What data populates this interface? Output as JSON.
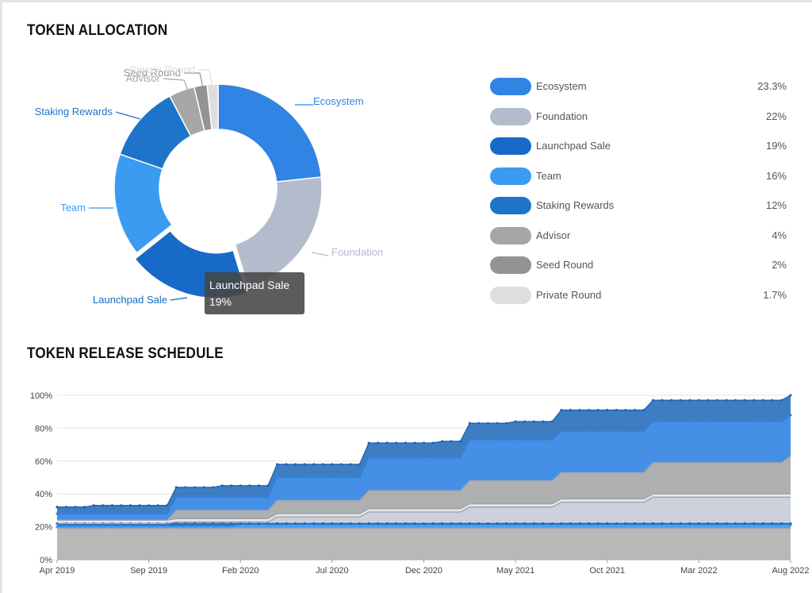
{
  "sections": {
    "allocation_title": "TOKEN ALLOCATION",
    "release_title": "TOKEN RELEASE SCHEDULE"
  },
  "tooltip": {
    "label": "Launchpad Sale",
    "value": "19%"
  },
  "colors": {
    "ecosystem": "#3183e4",
    "foundation": "#b3bccc",
    "launchpad": "#176ac7",
    "team": "#3b9bf1",
    "staking": "#1d74c8",
    "advisor": "#a6a6a6",
    "seed": "#939393",
    "private": "#dedede"
  },
  "chart_data": [
    {
      "type": "pie",
      "title": "TOKEN ALLOCATION",
      "donut": true,
      "legend_position": "right",
      "slices": [
        {
          "label": "Ecosystem",
          "value": 23.3,
          "display": "23.3%",
          "color": "#3183e4"
        },
        {
          "label": "Foundation",
          "value": 22,
          "display": "22%",
          "color": "#b3bccc"
        },
        {
          "label": "Launchpad Sale",
          "value": 19,
          "display": "19%",
          "color": "#176ac7"
        },
        {
          "label": "Team",
          "value": 16,
          "display": "16%",
          "color": "#3b9bf1"
        },
        {
          "label": "Staking Rewards",
          "value": 12,
          "display": "12%",
          "color": "#1d74c8"
        },
        {
          "label": "Advisor",
          "value": 4,
          "display": "4%",
          "color": "#a6a6a6"
        },
        {
          "label": "Seed Round",
          "value": 2,
          "display": "2%",
          "color": "#939393"
        },
        {
          "label": "Private Round",
          "value": 1.7,
          "display": "1.7%",
          "color": "#dedede"
        }
      ]
    },
    {
      "type": "area",
      "title": "TOKEN RELEASE SCHEDULE",
      "stacked": true,
      "x_ticks": [
        "Apr 2019",
        "Sep 2019",
        "Feb 2020",
        "Jul 2020",
        "Dec 2020",
        "May 2021",
        "Oct 2021",
        "Mar 2022",
        "Aug 2022"
      ],
      "y_ticks": [
        "0%",
        "20%",
        "40%",
        "60%",
        "80%",
        "100%"
      ],
      "ylim": [
        0,
        100
      ],
      "grid": true,
      "cumulative_boundaries": [
        {
          "values": [
            19,
            19,
            19,
            19,
            19,
            19,
            19,
            19,
            19,
            19,
            19,
            19,
            19,
            19,
            19,
            19,
            19,
            19,
            19,
            19,
            19,
            19,
            19,
            19,
            19,
            19,
            19,
            19,
            19,
            19,
            19,
            19,
            19,
            19,
            19,
            19,
            19,
            19,
            19,
            19,
            19,
            19,
            19,
            19,
            19,
            19,
            19,
            19,
            19,
            19,
            19,
            19,
            19,
            19,
            19,
            19,
            19,
            19,
            19,
            19,
            19,
            19,
            19,
            19,
            19,
            19,
            19,
            19,
            19,
            19,
            19,
            19,
            19,
            19,
            19,
            19,
            19,
            19,
            19,
            19,
            19
          ],
          "color": "#b0b0b0"
        },
        {
          "values": [
            20,
            20,
            20,
            20,
            20,
            20,
            20,
            20,
            20,
            20,
            20,
            20,
            20,
            20,
            20,
            20,
            20,
            20,
            20,
            20,
            21,
            21,
            21,
            21,
            21,
            21,
            21,
            21,
            21,
            21,
            21,
            21,
            21,
            21,
            21,
            21,
            21,
            21,
            21,
            21,
            21,
            21,
            21,
            21,
            21,
            21,
            21,
            21,
            21,
            21,
            21,
            21,
            21,
            21,
            21,
            21,
            21,
            21,
            21,
            21,
            21,
            21,
            21,
            21,
            21,
            21,
            21,
            21,
            21,
            21,
            21,
            21,
            21,
            21,
            21,
            21,
            21,
            21,
            21,
            21,
            21
          ],
          "color": "#3b9bf1"
        },
        {
          "values": [
            22,
            22,
            22,
            22,
            22,
            22,
            22,
            22,
            22,
            22,
            22,
            22,
            22,
            22,
            22,
            22,
            22,
            22,
            22,
            22,
            22,
            22,
            22,
            22,
            22,
            22,
            22,
            22,
            22,
            22,
            22,
            22,
            22,
            22,
            22,
            22,
            22,
            22,
            22,
            22,
            22,
            22,
            22,
            22,
            22,
            22,
            22,
            22,
            22,
            22,
            22,
            22,
            22,
            22,
            22,
            22,
            22,
            22,
            22,
            22,
            22,
            22,
            22,
            22,
            22,
            22,
            22,
            22,
            22,
            22,
            22,
            22,
            22,
            22,
            22,
            22,
            22,
            22,
            22,
            22,
            22
          ],
          "color": "#176ac7"
        },
        {
          "values": [
            22,
            22,
            22,
            22,
            22,
            22,
            22,
            22,
            22,
            22,
            22,
            22,
            22,
            23,
            23,
            23,
            23,
            23,
            23,
            23,
            23,
            23,
            23,
            23,
            26,
            26,
            26,
            26,
            26,
            26,
            26,
            26,
            26,
            26,
            29,
            29,
            29,
            29,
            29,
            29,
            29,
            29,
            29,
            29,
            29,
            32,
            32,
            32,
            32,
            32,
            32,
            32,
            32,
            32,
            32,
            35,
            35,
            35,
            35,
            35,
            35,
            35,
            35,
            35,
            35,
            38,
            38,
            38,
            38,
            38,
            38,
            38,
            38,
            38,
            38,
            38,
            38,
            38,
            38,
            38,
            38
          ],
          "color": "#c6ccd8"
        },
        {
          "values": [
            24,
            24,
            24,
            24,
            24,
            24,
            24,
            24,
            24,
            24,
            24,
            24,
            24,
            25,
            25,
            25,
            25,
            25,
            25,
            25,
            25,
            25,
            25,
            25,
            28,
            28,
            28,
            28,
            28,
            28,
            28,
            28,
            28,
            28,
            31,
            31,
            31,
            31,
            31,
            31,
            31,
            31,
            31,
            31,
            31,
            34,
            34,
            34,
            34,
            34,
            34,
            34,
            34,
            34,
            34,
            37,
            37,
            37,
            37,
            37,
            37,
            37,
            37,
            37,
            37,
            40,
            40,
            40,
            40,
            40,
            40,
            40,
            40,
            40,
            40,
            40,
            40,
            40,
            40,
            40,
            40
          ],
          "color": "#e6e6e6"
        },
        {
          "values": [
            24,
            24,
            24,
            24,
            24,
            24,
            24,
            24,
            24,
            24,
            24,
            24,
            24,
            30,
            30,
            30,
            30,
            30,
            30,
            30,
            30,
            30,
            30,
            30,
            36,
            36,
            36,
            36,
            36,
            36,
            36,
            36,
            36,
            36,
            42,
            42,
            42,
            42,
            42,
            42,
            42,
            42,
            42,
            42,
            42,
            48,
            48,
            48,
            48,
            48,
            48,
            48,
            48,
            48,
            48,
            53,
            53,
            53,
            53,
            53,
            53,
            53,
            53,
            53,
            53,
            59,
            59,
            59,
            59,
            59,
            59,
            59,
            59,
            59,
            59,
            59,
            59,
            59,
            59,
            59,
            63
          ],
          "color": "#a6a6a6"
        },
        {
          "values": [
            28,
            28,
            28,
            28,
            28,
            28,
            28,
            28,
            28,
            28,
            28,
            28,
            28,
            38,
            38,
            38,
            38,
            38,
            38,
            38,
            38,
            38,
            38,
            38,
            50,
            50,
            50,
            50,
            50,
            50,
            50,
            50,
            50,
            50,
            62,
            62,
            62,
            62,
            62,
            62,
            62,
            62,
            62,
            62,
            62,
            73,
            73,
            73,
            73,
            73,
            73,
            73,
            73,
            73,
            73,
            78,
            78,
            78,
            78,
            78,
            78,
            78,
            78,
            78,
            78,
            84,
            84,
            84,
            84,
            84,
            84,
            84,
            84,
            84,
            84,
            84,
            84,
            84,
            84,
            84,
            88
          ],
          "color": "#3183e4"
        },
        {
          "values": [
            32,
            32,
            32,
            32,
            33,
            33,
            33,
            33,
            33,
            33,
            33,
            33,
            33,
            44,
            44,
            44,
            44,
            44,
            45,
            45,
            45,
            45,
            45,
            45,
            58,
            58,
            58,
            58,
            58,
            58,
            58,
            58,
            58,
            58,
            71,
            71,
            71,
            71,
            71,
            71,
            71,
            71,
            72,
            72,
            72,
            83,
            83,
            83,
            83,
            83,
            84,
            84,
            84,
            84,
            84,
            91,
            91,
            91,
            91,
            91,
            91,
            91,
            91,
            91,
            91,
            97,
            97,
            97,
            97,
            97,
            97,
            97,
            97,
            97,
            97,
            97,
            97,
            97,
            97,
            97,
            100
          ],
          "color": "#1d66b8"
        }
      ]
    }
  ]
}
